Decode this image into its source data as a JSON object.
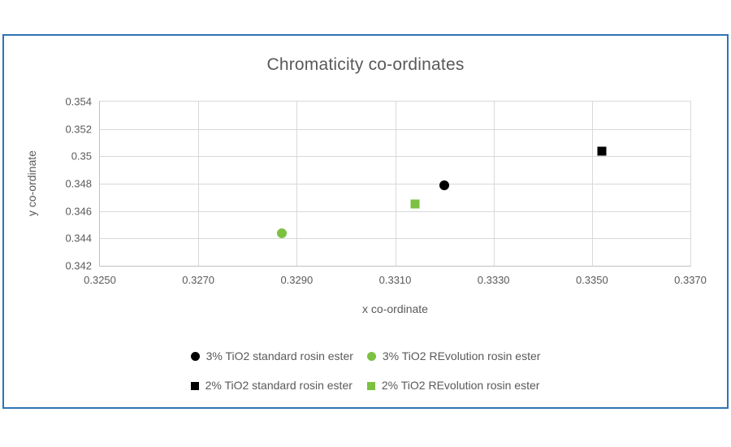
{
  "figure": {
    "frame_border_color": "#2E74B5",
    "background_color": "#ffffff",
    "text_color": "#595959",
    "gridline_color": "#D9D9D9"
  },
  "chart_data": {
    "type": "scatter",
    "title": "Chromaticity co-ordinates",
    "xlabel": "x co-ordinate",
    "ylabel": "y co-ordinate",
    "xlim": [
      0.325,
      0.337
    ],
    "ylim": [
      0.342,
      0.354
    ],
    "x_tick_labels": [
      "0.3250",
      "0.3270",
      "0.3290",
      "0.3310",
      "0.3330",
      "0.3350",
      "0.3370"
    ],
    "y_tick_labels": [
      "0.354",
      "0.352",
      "0.35",
      "0.348",
      "0.346",
      "0.344",
      "0.342"
    ],
    "grid": true,
    "legend_position": "bottom",
    "series": [
      {
        "name": "3% TiO2 standard rosin ester",
        "marker": "circle",
        "color": "#000000",
        "points": [
          [
            0.332,
            0.3479
          ]
        ]
      },
      {
        "name": "3% TiO2 REvolution rosin ester",
        "marker": "circle",
        "color": "#7CC142",
        "points": [
          [
            0.3287,
            0.3444
          ]
        ]
      },
      {
        "name": "2% TiO2 standard rosin ester",
        "marker": "square",
        "color": "#000000",
        "points": [
          [
            0.3352,
            0.3504
          ]
        ]
      },
      {
        "name": "2% TiO2 REvolution rosin ester",
        "marker": "square",
        "color": "#7CC142",
        "points": [
          [
            0.3314,
            0.3465
          ]
        ]
      }
    ]
  }
}
